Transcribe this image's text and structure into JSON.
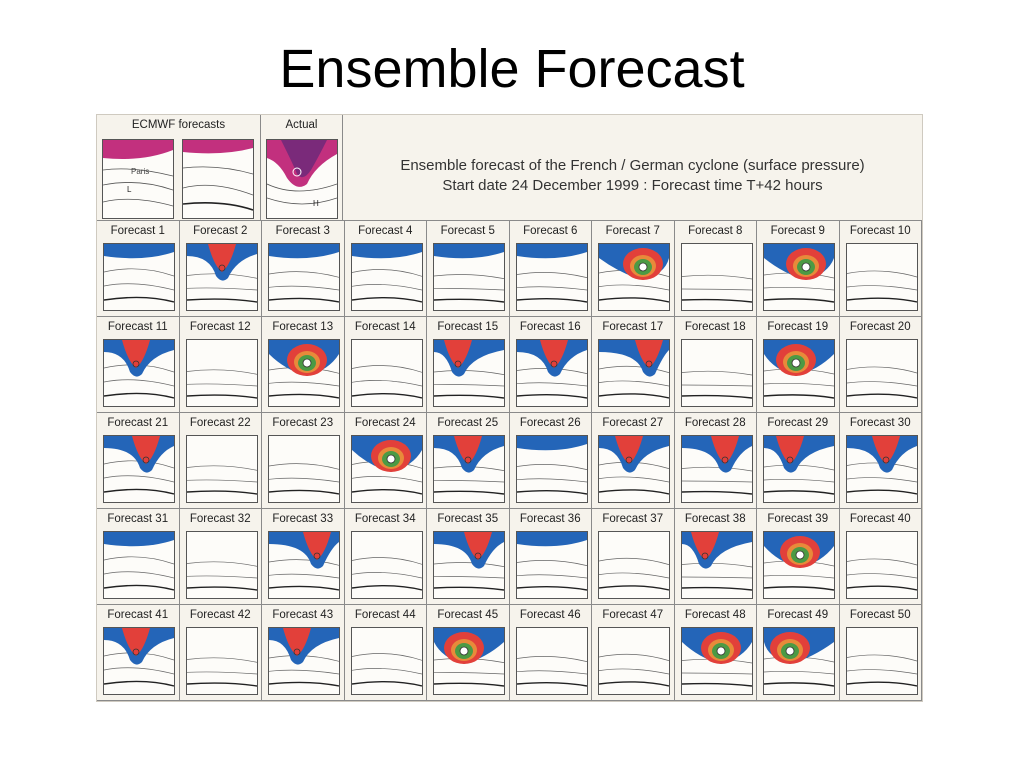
{
  "page": {
    "title": "Ensemble Forecast"
  },
  "header": {
    "ecmwf_label": "ECMWF forecasts",
    "actual_label": "Actual",
    "paris_label": "Paris",
    "description": [
      "Ensemble forecast of the French / German cyclone (surface pressure)",
      "Start date 24 December 1999 : Forecast time T+42 hours"
    ]
  },
  "colors": {
    "red": "#e2403a",
    "blue": "#2465b8",
    "green": "#4c9a44",
    "orange": "#e88a3a",
    "magenta": "#c2307e",
    "paper": "#f6f3ec"
  },
  "forecasts": [
    {
      "label": "Forecast  1",
      "icon": "blue-band"
    },
    {
      "label": "Forecast  2",
      "icon": "red-cyclone"
    },
    {
      "label": "Forecast  3",
      "icon": "blue-band"
    },
    {
      "label": "Forecast  4",
      "icon": "blue-band"
    },
    {
      "label": "Forecast  5",
      "icon": "blue-band"
    },
    {
      "label": "Forecast  6",
      "icon": "blue-band"
    },
    {
      "label": "Forecast  7",
      "icon": "deep-cyclone"
    },
    {
      "label": "Forecast  8",
      "icon": "plain"
    },
    {
      "label": "Forecast  9",
      "icon": "deep-cyclone"
    },
    {
      "label": "Forecast 10",
      "icon": "plain"
    },
    {
      "label": "Forecast 11",
      "icon": "red-cyclone"
    },
    {
      "label": "Forecast 12",
      "icon": "plain"
    },
    {
      "label": "Forecast 13",
      "icon": "deep-cyclone"
    },
    {
      "label": "Forecast 14",
      "icon": "plain"
    },
    {
      "label": "Forecast 15",
      "icon": "red-cyclone"
    },
    {
      "label": "Forecast 16",
      "icon": "red-cyclone"
    },
    {
      "label": "Forecast 17",
      "icon": "red-cyclone"
    },
    {
      "label": "Forecast 18",
      "icon": "plain"
    },
    {
      "label": "Forecast 19",
      "icon": "deep-cyclone"
    },
    {
      "label": "Forecast 20",
      "icon": "plain"
    },
    {
      "label": "Forecast 21",
      "icon": "red-cyclone"
    },
    {
      "label": "Forecast 22",
      "icon": "plain"
    },
    {
      "label": "Forecast 23",
      "icon": "plain"
    },
    {
      "label": "Forecast 24",
      "icon": "deep-cyclone"
    },
    {
      "label": "Forecast 25",
      "icon": "red-cyclone"
    },
    {
      "label": "Forecast 26",
      "icon": "blue-band"
    },
    {
      "label": "Forecast 27",
      "icon": "red-cyclone"
    },
    {
      "label": "Forecast 28",
      "icon": "red-cyclone"
    },
    {
      "label": "Forecast 29",
      "icon": "red-cyclone"
    },
    {
      "label": "Forecast 30",
      "icon": "red-cyclone"
    },
    {
      "label": "Forecast 31",
      "icon": "blue-band"
    },
    {
      "label": "Forecast 32",
      "icon": "plain"
    },
    {
      "label": "Forecast 33",
      "icon": "red-cyclone"
    },
    {
      "label": "Forecast 34",
      "icon": "plain"
    },
    {
      "label": "Forecast 35",
      "icon": "red-cyclone"
    },
    {
      "label": "Forecast 36",
      "icon": "blue-band"
    },
    {
      "label": "Forecast 37",
      "icon": "plain"
    },
    {
      "label": "Forecast 38",
      "icon": "red-cyclone"
    },
    {
      "label": "Forecast 39",
      "icon": "deep-cyclone"
    },
    {
      "label": "Forecast 40",
      "icon": "plain"
    },
    {
      "label": "Forecast 41",
      "icon": "red-cyclone"
    },
    {
      "label": "Forecast 42",
      "icon": "plain"
    },
    {
      "label": "Forecast 43",
      "icon": "red-cyclone"
    },
    {
      "label": "Forecast 44",
      "icon": "plain"
    },
    {
      "label": "Forecast 45",
      "icon": "deep-cyclone"
    },
    {
      "label": "Forecast 46",
      "icon": "plain"
    },
    {
      "label": "Forecast 47",
      "icon": "plain"
    },
    {
      "label": "Forecast 48",
      "icon": "deep-cyclone"
    },
    {
      "label": "Forecast 49",
      "icon": "deep-cyclone"
    },
    {
      "label": "Forecast 50",
      "icon": "plain"
    }
  ]
}
